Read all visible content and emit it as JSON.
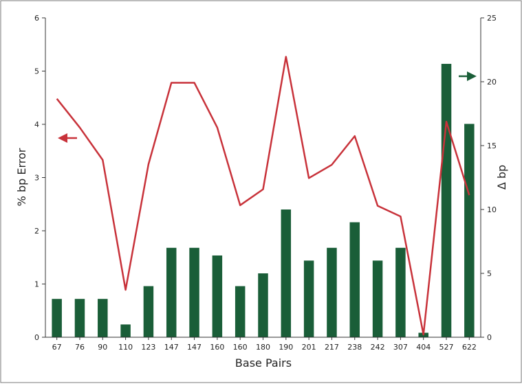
{
  "chart_data": {
    "type": "bar",
    "title": "",
    "xlabel": "Base Pairs",
    "ylabel_left": "% bp Error",
    "ylabel_right": "Δ bp",
    "categories": [
      "67",
      "76",
      "90",
      "110",
      "123",
      "147",
      "147",
      "160",
      "160",
      "180",
      "190",
      "201",
      "217",
      "238",
      "242",
      "307",
      "404",
      "527",
      "622"
    ],
    "left_axis": {
      "ylim": [
        0,
        6
      ],
      "ticks": [
        "0",
        "1",
        "2",
        "3",
        "4",
        "5",
        "6"
      ]
    },
    "right_axis": {
      "ylim": [
        0,
        25
      ],
      "ticks": [
        "0",
        "5",
        "10",
        "15",
        "20",
        "25"
      ]
    },
    "grid": false,
    "series": [
      {
        "type": "bar",
        "axis": "right",
        "color": "#1a5e38",
        "values": [
          3,
          3,
          3,
          1,
          4,
          7,
          7,
          6.4,
          4,
          5,
          10,
          6,
          7,
          9,
          6,
          7,
          0.35,
          21.4,
          16.7
        ]
      },
      {
        "type": "line",
        "axis": "left",
        "color": "#c8323a",
        "values": [
          4.48,
          3.94,
          3.33,
          0.89,
          3.25,
          4.78,
          4.78,
          3.94,
          2.48,
          2.78,
          5.27,
          2.99,
          3.24,
          3.78,
          2.47,
          2.27,
          0.05,
          4.05,
          2.67
        ]
      }
    ],
    "annotations": [
      {
        "kind": "arrow",
        "direction": "left",
        "color": "#c8323a",
        "meaning": "line series uses left axis"
      },
      {
        "kind": "arrow",
        "direction": "right",
        "color": "#1a5e38",
        "meaning": "bar series uses right axis"
      }
    ]
  }
}
